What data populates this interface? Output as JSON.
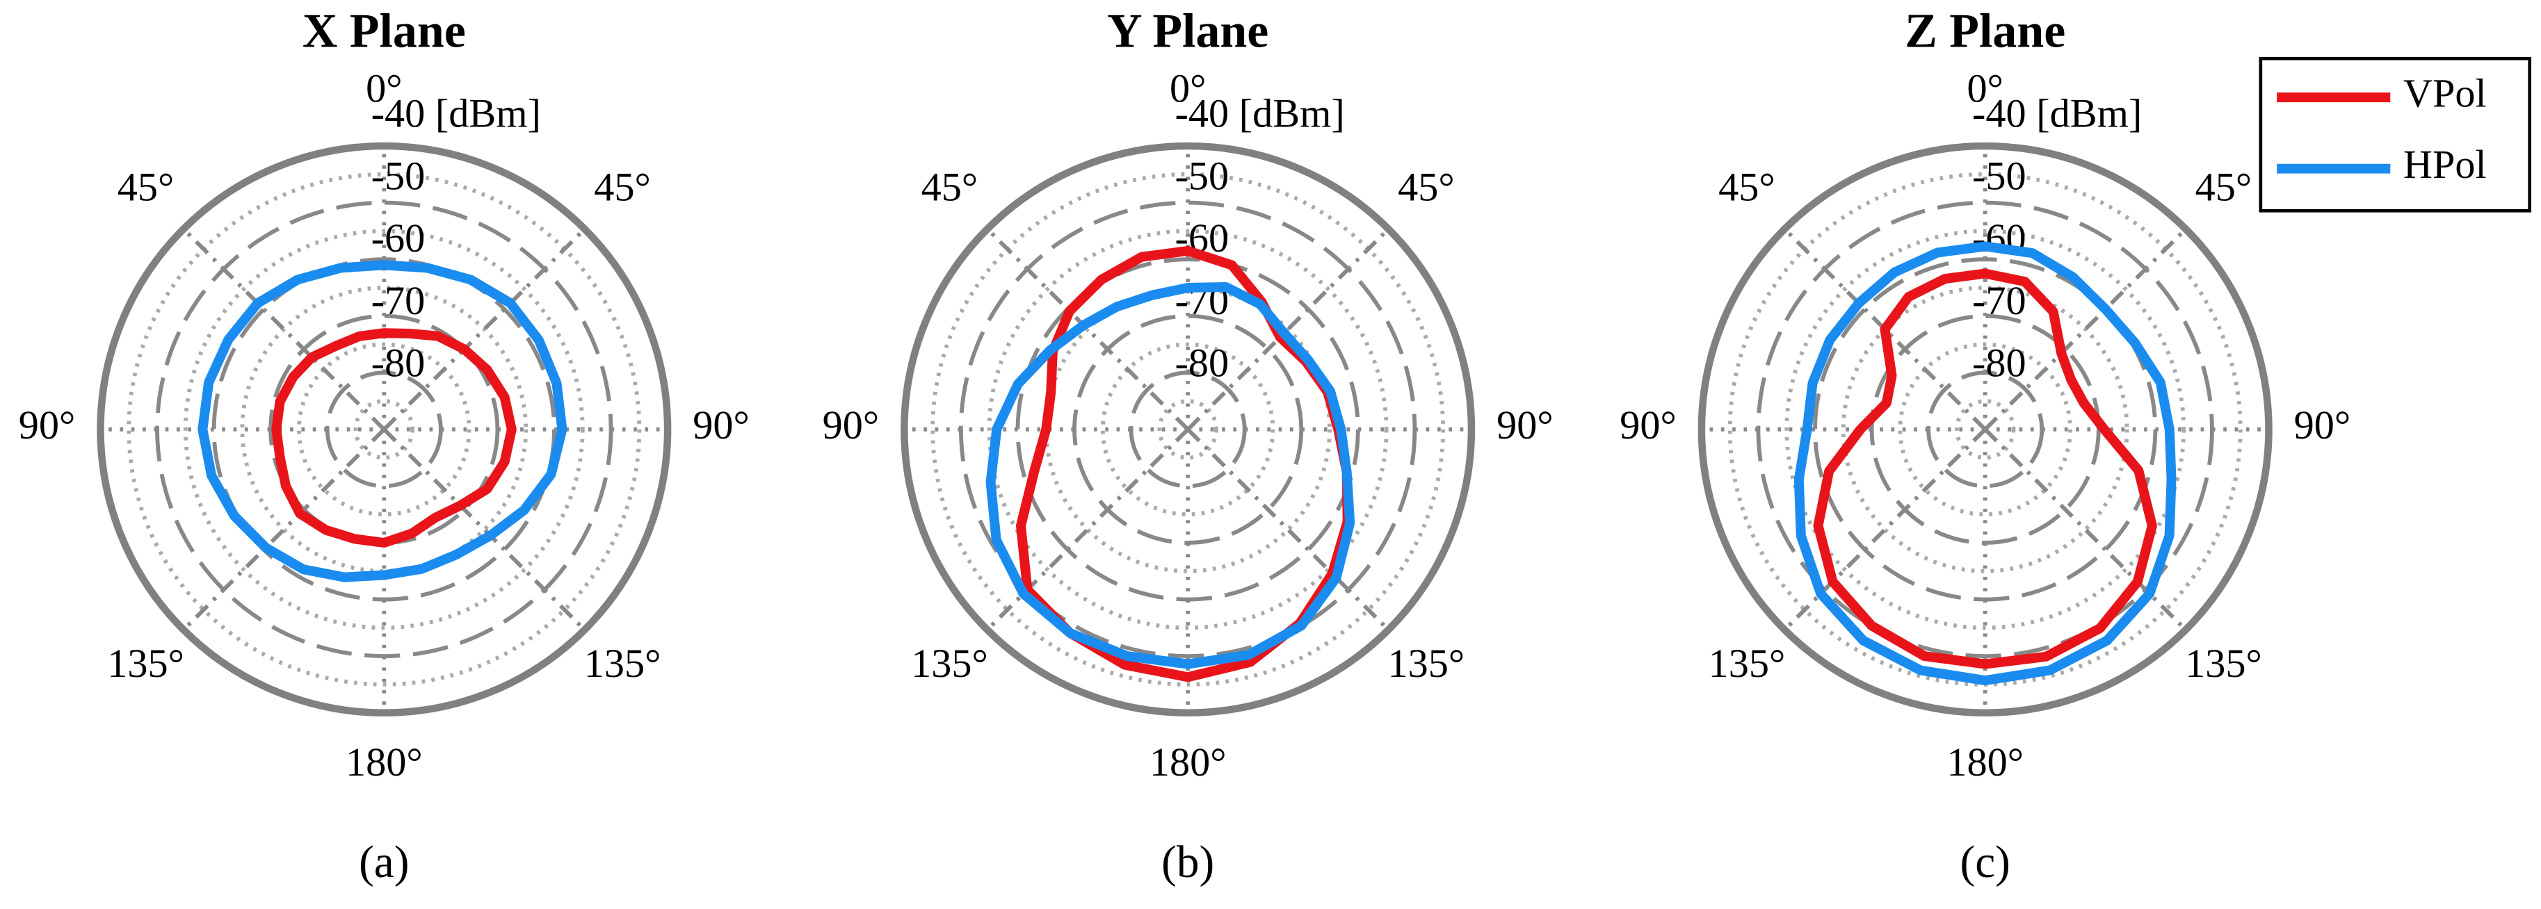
{
  "chart_data": [
    {
      "type": "polar",
      "title": "X Plane",
      "caption": "(a)",
      "theta": [
        0,
        15,
        30,
        45,
        60,
        75,
        90,
        105,
        120,
        135,
        150,
        165,
        180,
        195,
        210,
        225,
        240,
        255,
        270,
        285,
        300,
        315,
        330,
        345
      ],
      "rlim": [
        -90,
        -40
      ],
      "rticks": [
        {
          "value": -40,
          "label": "-40 [dBm]"
        },
        -50,
        -60,
        -70,
        -80
      ],
      "thetaticks": [
        {
          "value": 0,
          "label": "0°"
        },
        {
          "value": 45,
          "label": "45°"
        },
        {
          "value": 90,
          "label": "90°"
        },
        {
          "value": 135,
          "label": "135°"
        },
        {
          "value": 180,
          "label": "180°"
        },
        {
          "value": 225,
          "label": "135°"
        },
        {
          "value": 270,
          "label": "90°"
        },
        {
          "value": 315,
          "label": "45°"
        }
      ],
      "grid": true,
      "series": [
        {
          "name": "VPol",
          "color": "#e8141a",
          "values": [
            -73,
            -72.5,
            -71,
            -70,
            -69,
            -68,
            -67.5,
            -68,
            -69,
            -71,
            -72,
            -71,
            -70,
            -70,
            -69.5,
            -69,
            -70,
            -71,
            -71,
            -71,
            -71.5,
            -72,
            -73,
            -73
          ]
        },
        {
          "name": "HPol",
          "color": "#1a8cf0",
          "values": [
            -61,
            -60.5,
            -59.5,
            -58.5,
            -58.5,
            -58.5,
            -58.6,
            -59.5,
            -61.5,
            -63.5,
            -64.5,
            -64.5,
            -64.3,
            -63,
            -61.5,
            -60.5,
            -59.5,
            -58.5,
            -58,
            -58,
            -58.3,
            -58.5,
            -59.5,
            -60.5
          ]
        }
      ]
    },
    {
      "type": "polar",
      "title": "Y Plane",
      "caption": "(b)",
      "theta": [
        0,
        15,
        30,
        45,
        60,
        75,
        90,
        105,
        120,
        135,
        150,
        165,
        180,
        195,
        210,
        225,
        240,
        255,
        270,
        285,
        300,
        315,
        330,
        345
      ],
      "rlim": [
        -90,
        -40
      ],
      "rticks": [
        {
          "value": -40,
          "label": "-40 [dBm]"
        },
        -50,
        -60,
        -70,
        -80
      ],
      "thetaticks": [
        {
          "value": 0,
          "label": "0°"
        },
        {
          "value": 45,
          "label": "45°"
        },
        {
          "value": 90,
          "label": "90°"
        },
        {
          "value": 135,
          "label": "135°"
        },
        {
          "value": 180,
          "label": "180°"
        },
        {
          "value": 225,
          "label": "135°"
        },
        {
          "value": 270,
          "label": "90°"
        },
        {
          "value": 315,
          "label": "45°"
        }
      ],
      "grid": true,
      "series": [
        {
          "name": "VPol",
          "color": "#e8141a",
          "values": [
            -58.5,
            -60,
            -64,
            -67,
            -66,
            -64.5,
            -63.5,
            -61,
            -57.5,
            -54,
            -50.5,
            -47.5,
            -46.3,
            -47,
            -48.5,
            -50,
            -56,
            -62,
            -65,
            -65,
            -62.5,
            -60.5,
            -59.5,
            -58.5
          ]
        },
        {
          "name": "HPol",
          "color": "#1a8cf0",
          "values": [
            -65,
            -64,
            -64.5,
            -66,
            -65.5,
            -64,
            -63,
            -61,
            -57,
            -53,
            -50,
            -48.8,
            -48.6,
            -48.6,
            -48.5,
            -49,
            -51,
            -54,
            -56.3,
            -59,
            -62,
            -64,
            -65,
            -65.5
          ]
        }
      ]
    },
    {
      "type": "polar",
      "title": "Z Plane",
      "caption": "(c)",
      "theta": [
        0,
        15,
        30,
        45,
        60,
        75,
        90,
        105,
        120,
        135,
        150,
        165,
        180,
        195,
        210,
        225,
        240,
        255,
        270,
        285,
        300,
        315,
        330,
        345
      ],
      "rlim": [
        -90,
        -40
      ],
      "rticks": [
        {
          "value": -40,
          "label": "-40 [dBm]"
        },
        -50,
        -60,
        -70,
        -80
      ],
      "thetaticks": [
        {
          "value": 0,
          "label": "0°"
        },
        {
          "value": 45,
          "label": "45°"
        },
        {
          "value": 90,
          "label": "90°"
        },
        {
          "value": 135,
          "label": "135°"
        },
        {
          "value": 180,
          "label": "180°"
        },
        {
          "value": 225,
          "label": "135°"
        },
        {
          "value": 270,
          "label": "90°"
        },
        {
          "value": 315,
          "label": "45°"
        }
      ],
      "grid": true,
      "legend": "upper right",
      "series": [
        {
          "name": "VPol",
          "color": "#e8141a",
          "values": [
            -62.5,
            -63,
            -66,
            -71,
            -72.5,
            -72,
            -69,
            -62,
            -56,
            -52,
            -49.5,
            -48.5,
            -48.6,
            -48.6,
            -50,
            -52,
            -56,
            -61.5,
            -68,
            -72,
            -71,
            -65,
            -63,
            -62.5
          ]
        },
        {
          "name": "HPol",
          "color": "#1a8cf0",
          "values": [
            -57.7,
            -57.8,
            -59,
            -60,
            -59.5,
            -58,
            -57.5,
            -56,
            -52.5,
            -49,
            -47,
            -46,
            -45.7,
            -46,
            -47,
            -49,
            -52.5,
            -56,
            -58.6,
            -58.5,
            -58.4,
            -58.5,
            -58,
            -57.7
          ]
        }
      ]
    }
  ]
}
